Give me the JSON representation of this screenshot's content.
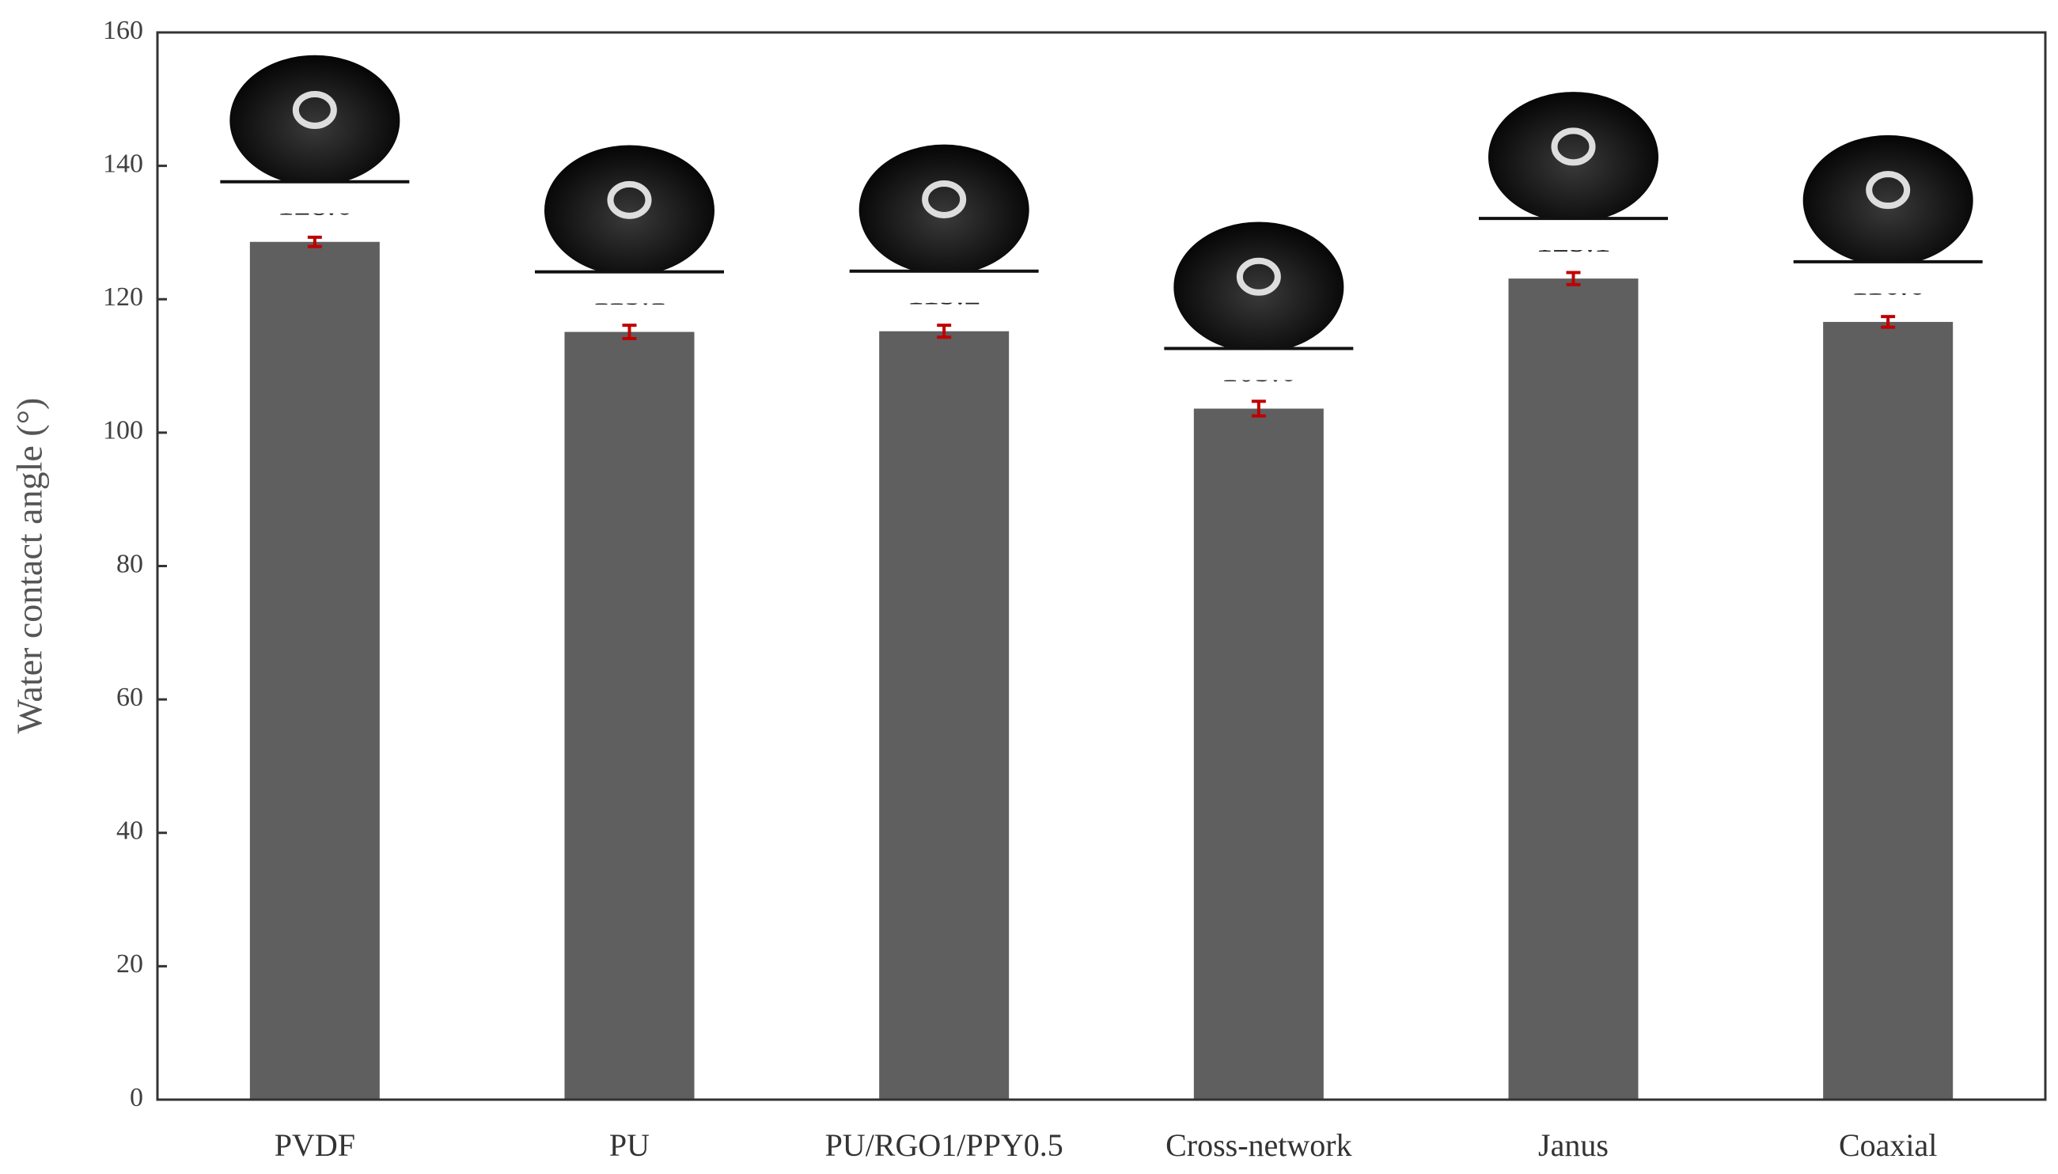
{
  "chart_data": {
    "type": "bar",
    "y_label": "Water contact  angle (°)",
    "categories": [
      "PVDF",
      "PU",
      "PU/RGO1/PPY0.5",
      "Cross-network",
      "Janus",
      "Coaxial"
    ],
    "values": [
      128.6,
      115.1,
      115.2,
      103.6,
      123.1,
      116.6
    ],
    "errors": [
      0.7,
      1.0,
      0.9,
      1.1,
      0.9,
      0.8
    ],
    "color": "#5f5f5f",
    "error_color": "#c00000",
    "ylim": [
      0,
      160
    ],
    "yticks": [
      0,
      20,
      40,
      60,
      80,
      100,
      120,
      140,
      160
    ],
    "grid": false
  }
}
